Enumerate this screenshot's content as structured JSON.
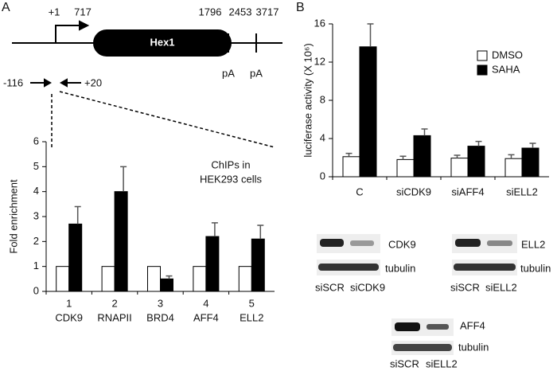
{
  "panel_labels": [
    "A",
    "B"
  ],
  "gene_diagram": {
    "gene": "Hex1",
    "positions": [
      "+1",
      "717",
      "1796",
      "2453",
      "3717"
    ],
    "primers": [
      "-116",
      "+20"
    ],
    "polya": [
      "pA",
      "pA"
    ]
  },
  "chart_data": [
    {
      "type": "bar",
      "ylabel": "Fold enrichment",
      "annotation": [
        "ChIPs in",
        "HEK293 cells"
      ],
      "category_numbers": [
        "1",
        "2",
        "3",
        "4",
        "5"
      ],
      "categories": [
        "CDK9",
        "RNAPII",
        "BRD4",
        "AFF4",
        "ELL2"
      ],
      "series": [
        {
          "color": "#ffffff",
          "values": [
            1,
            1,
            1,
            1,
            1
          ]
        },
        {
          "color": "#000000",
          "values": [
            2.7,
            4.0,
            0.5,
            2.2,
            2.1
          ],
          "errors": [
            0.7,
            1.0,
            0.12,
            0.55,
            0.55
          ]
        }
      ],
      "ylim": [
        0,
        6
      ],
      "yticks": [
        0,
        1,
        2,
        3,
        4,
        5,
        6
      ]
    },
    {
      "type": "bar",
      "ylabel": "luciferase activity (X 10⁶)",
      "categories": [
        "C",
        "siCDK9",
        "siAFF4",
        "siELL2"
      ],
      "series": [
        {
          "name": "DMSO",
          "color": "#ffffff",
          "values": [
            2.1,
            1.8,
            1.95,
            1.9
          ],
          "errors": [
            0.35,
            0.35,
            0.3,
            0.4
          ]
        },
        {
          "name": "SAHA",
          "color": "#000000",
          "values": [
            13.6,
            4.3,
            3.2,
            3.0
          ],
          "errors": [
            2.4,
            0.7,
            0.5,
            0.5
          ]
        }
      ],
      "ylim": [
        0,
        16
      ],
      "yticks": [
        0,
        4,
        8,
        12,
        16
      ],
      "legend": "upper right"
    }
  ],
  "blots": [
    {
      "bands": [
        "CDK9",
        "tubulin"
      ],
      "lanes": [
        "siSCR",
        "siCDK9"
      ]
    },
    {
      "bands": [
        "ELL2",
        "tubulin"
      ],
      "lanes": [
        "siSCR",
        "siELL2"
      ]
    },
    {
      "bands": [
        "AFF4",
        "tubulin"
      ],
      "lanes": [
        "siSCR",
        "siELL2"
      ]
    }
  ]
}
